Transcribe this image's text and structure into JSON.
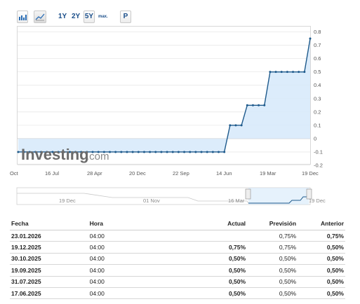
{
  "toolbar": {
    "bar_icon": "bar-chart-icon",
    "line_icon": "line-chart-icon",
    "ranges": [
      "1Y",
      "2Y",
      "5Y",
      "max."
    ],
    "active_range": "5Y",
    "p_button": "P"
  },
  "watermark": {
    "brand": "Investing",
    "suffix": ".com"
  },
  "chart_data": {
    "type": "line",
    "x_ticks": [
      "Oct",
      "16 Jul",
      "28 Apr",
      "20 Dec",
      "22 Sep",
      "14 Jun",
      "19 Mar",
      "19 Dec"
    ],
    "y_ticks": [
      "0.8",
      "0.7",
      "0.6",
      "0.5",
      "0.4",
      "0.3",
      "0.2",
      "0.1",
      "0",
      "-0.1",
      "-0.2"
    ],
    "ylim": [
      -0.2,
      0.8
    ],
    "series": [
      {
        "values": [
          -0.1,
          -0.1,
          -0.1,
          -0.1,
          -0.1,
          -0.1,
          -0.1,
          -0.1,
          -0.1,
          -0.1,
          -0.1,
          -0.1,
          -0.1,
          -0.1,
          -0.1,
          -0.1,
          -0.1,
          -0.1,
          -0.1,
          -0.1,
          -0.1,
          -0.1,
          -0.1,
          -0.1,
          -0.1,
          -0.1,
          -0.1,
          -0.1,
          -0.1,
          -0.1,
          -0.1,
          -0.1,
          -0.1,
          -0.1,
          -0.1,
          -0.1,
          -0.1,
          0.1,
          0.1,
          0.1,
          0.25,
          0.25,
          0.25,
          0.25,
          0.5,
          0.5,
          0.5,
          0.5,
          0.5,
          0.5,
          0.5,
          0.75
        ]
      }
    ],
    "colors": {
      "line": "#1e5a8c",
      "area": "#d6e9fa",
      "grid": "#e8e8e8"
    },
    "navigator": {
      "labels": [
        "19 Dec",
        "01 Nov",
        "16 Mar",
        "19 Dec"
      ]
    }
  },
  "table": {
    "headers": {
      "date": "Fecha",
      "time": "Hora",
      "actual": "Actual",
      "forecast": "Previsión",
      "previous": "Anterior"
    },
    "rows": [
      {
        "date": "23.01.2026",
        "time": "04:00",
        "actual": "",
        "forecast": "0,75%",
        "previous": "0,75%"
      },
      {
        "date": "19.12.2025",
        "time": "04:00",
        "actual": "0,75%",
        "forecast": "0,75%",
        "previous": "0,50%"
      },
      {
        "date": "30.10.2025",
        "time": "04:00",
        "actual": "0,50%",
        "forecast": "0,50%",
        "previous": "0,50%"
      },
      {
        "date": "19.09.2025",
        "time": "04:00",
        "actual": "0,50%",
        "forecast": "0,50%",
        "previous": "0,50%"
      },
      {
        "date": "31.07.2025",
        "time": "04:00",
        "actual": "0,50%",
        "forecast": "0,50%",
        "previous": "0,50%"
      },
      {
        "date": "17.06.2025",
        "time": "04:00",
        "actual": "0,50%",
        "forecast": "0,50%",
        "previous": "0,50%"
      }
    ]
  }
}
